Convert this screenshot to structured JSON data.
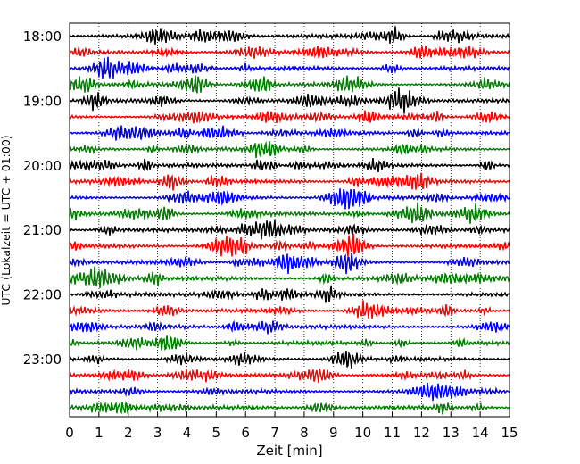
{
  "chart_data": {
    "type": "line",
    "title": "",
    "xlabel": "Zeit  [min]",
    "ylabel": "UTC (Lokalzeit = UTC + 01:00)",
    "xlim": [
      0,
      15
    ],
    "x_ticks": [
      "0",
      "1",
      "2",
      "3",
      "4",
      "5",
      "6",
      "7",
      "8",
      "9",
      "10",
      "11",
      "12",
      "13",
      "14",
      "15"
    ],
    "y_ticks": [
      "18:00",
      "19:00",
      "20:00",
      "21:00",
      "22:00",
      "23:00"
    ],
    "trace_interval_minutes": 15,
    "trace_start": "18:00",
    "trace_count": 24,
    "trace_colors": [
      "#000000",
      "#ff0000",
      "#0000ff",
      "#007f00"
    ],
    "grid": "vertical-dotted",
    "legend": "none"
  }
}
